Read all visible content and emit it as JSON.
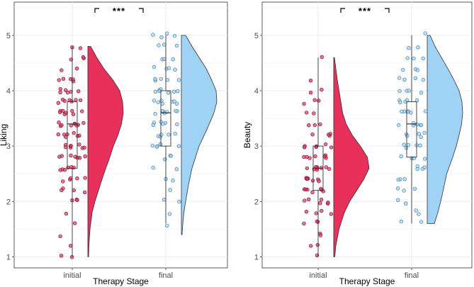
{
  "chart_data": [
    {
      "type": "violin",
      "title": "",
      "xlabel": "Therapy Stage",
      "ylabel": "Liking",
      "ylim": [
        0.8,
        5.6
      ],
      "yticks": [
        1,
        2,
        3,
        4,
        5
      ],
      "categories": [
        "initial",
        "final"
      ],
      "significance": "***",
      "colors": {
        "initial": "#E8305A",
        "final": "#9FD3F5"
      },
      "series": [
        {
          "name": "initial",
          "min": 1.0,
          "q1": 2.6,
          "median": 3.4,
          "q3": 3.8,
          "max": 4.8,
          "density": [
            [
              1.0,
              0.02
            ],
            [
              1.2,
              0.03
            ],
            [
              1.5,
              0.06
            ],
            [
              1.8,
              0.12
            ],
            [
              2.0,
              0.2
            ],
            [
              2.2,
              0.3
            ],
            [
              2.5,
              0.45
            ],
            [
              2.8,
              0.62
            ],
            [
              3.0,
              0.72
            ],
            [
              3.2,
              0.85
            ],
            [
              3.4,
              0.95
            ],
            [
              3.6,
              1.0
            ],
            [
              3.8,
              0.98
            ],
            [
              4.0,
              0.9
            ],
            [
              4.2,
              0.7
            ],
            [
              4.4,
              0.45
            ],
            [
              4.6,
              0.25
            ],
            [
              4.8,
              0.08
            ]
          ],
          "points": [
            1.0,
            1.0,
            1.2,
            1.4,
            1.6,
            1.8,
            2.0,
            2.0,
            2.0,
            2.2,
            2.2,
            2.2,
            2.2,
            2.4,
            2.4,
            2.4,
            2.4,
            2.4,
            2.6,
            2.6,
            2.6,
            2.6,
            2.6,
            2.6,
            2.8,
            2.8,
            2.8,
            2.8,
            2.8,
            2.8,
            2.8,
            3.0,
            3.0,
            3.0,
            3.0,
            3.0,
            3.0,
            3.0,
            3.0,
            3.2,
            3.2,
            3.2,
            3.2,
            3.2,
            3.2,
            3.2,
            3.4,
            3.4,
            3.4,
            3.4,
            3.4,
            3.4,
            3.4,
            3.4,
            3.4,
            3.6,
            3.6,
            3.6,
            3.6,
            3.6,
            3.6,
            3.6,
            3.6,
            3.8,
            3.8,
            3.8,
            3.8,
            3.8,
            3.8,
            3.8,
            4.0,
            4.0,
            4.0,
            4.0,
            4.0,
            4.0,
            4.2,
            4.2,
            4.2,
            4.2,
            4.2,
            4.4,
            4.4,
            4.6,
            4.6,
            4.6,
            4.8,
            4.8
          ]
        },
        {
          "name": "final",
          "min": 1.6,
          "q1": 3.0,
          "median": 3.6,
          "q3": 4.0,
          "max": 5.0,
          "density": [
            [
              1.4,
              0.02
            ],
            [
              1.6,
              0.04
            ],
            [
              1.8,
              0.07
            ],
            [
              2.0,
              0.12
            ],
            [
              2.3,
              0.2
            ],
            [
              2.6,
              0.3
            ],
            [
              3.0,
              0.5
            ],
            [
              3.3,
              0.72
            ],
            [
              3.6,
              0.92
            ],
            [
              3.8,
              1.0
            ],
            [
              4.0,
              0.98
            ],
            [
              4.2,
              0.85
            ],
            [
              4.4,
              0.7
            ],
            [
              4.6,
              0.5
            ],
            [
              4.8,
              0.3
            ],
            [
              5.0,
              0.12
            ]
          ],
          "points": [
            1.6,
            1.8,
            2.0,
            2.0,
            2.2,
            2.4,
            2.4,
            2.6,
            2.6,
            2.8,
            2.8,
            2.8,
            3.0,
            3.0,
            3.0,
            3.0,
            3.0,
            3.2,
            3.2,
            3.2,
            3.2,
            3.2,
            3.4,
            3.4,
            3.4,
            3.4,
            3.4,
            3.4,
            3.6,
            3.6,
            3.6,
            3.6,
            3.6,
            3.6,
            3.6,
            3.8,
            3.8,
            3.8,
            3.8,
            3.8,
            3.8,
            3.8,
            4.0,
            4.0,
            4.0,
            4.0,
            4.0,
            4.0,
            4.0,
            4.2,
            4.2,
            4.2,
            4.2,
            4.2,
            4.4,
            4.4,
            4.4,
            4.4,
            4.6,
            4.6,
            4.6,
            4.8,
            4.8,
            4.8,
            5.0,
            5.0,
            5.0,
            5.0
          ]
        }
      ]
    },
    {
      "type": "violin",
      "title": "",
      "xlabel": "Therapy Stage",
      "ylabel": "Beauty",
      "ylim": [
        0.8,
        5.6
      ],
      "yticks": [
        1,
        2,
        3,
        4,
        5
      ],
      "categories": [
        "initial",
        "final"
      ],
      "significance": "***",
      "colors": {
        "initial": "#E8305A",
        "final": "#9FD3F5"
      },
      "series": [
        {
          "name": "initial",
          "min": 1.0,
          "q1": 2.2,
          "median": 2.6,
          "q3": 3.0,
          "max": 4.6,
          "density": [
            [
              1.0,
              0.03
            ],
            [
              1.2,
              0.06
            ],
            [
              1.5,
              0.15
            ],
            [
              1.8,
              0.3
            ],
            [
              2.0,
              0.45
            ],
            [
              2.2,
              0.65
            ],
            [
              2.4,
              0.85
            ],
            [
              2.6,
              1.0
            ],
            [
              2.8,
              0.95
            ],
            [
              3.0,
              0.75
            ],
            [
              3.2,
              0.52
            ],
            [
              3.4,
              0.35
            ],
            [
              3.6,
              0.25
            ],
            [
              3.8,
              0.2
            ],
            [
              4.0,
              0.15
            ],
            [
              4.2,
              0.1
            ],
            [
              4.4,
              0.06
            ],
            [
              4.6,
              0.02
            ]
          ],
          "points": [
            1.0,
            1.2,
            1.2,
            1.4,
            1.4,
            1.6,
            1.6,
            1.6,
            1.8,
            1.8,
            1.8,
            1.8,
            2.0,
            2.0,
            2.0,
            2.0,
            2.0,
            2.0,
            2.2,
            2.2,
            2.2,
            2.2,
            2.2,
            2.2,
            2.2,
            2.4,
            2.4,
            2.4,
            2.4,
            2.4,
            2.4,
            2.4,
            2.4,
            2.6,
            2.6,
            2.6,
            2.6,
            2.6,
            2.6,
            2.6,
            2.6,
            2.6,
            2.8,
            2.8,
            2.8,
            2.8,
            2.8,
            2.8,
            2.8,
            3.0,
            3.0,
            3.0,
            3.0,
            3.0,
            3.0,
            3.2,
            3.2,
            3.2,
            3.2,
            3.4,
            3.4,
            3.4,
            3.6,
            3.6,
            3.8,
            3.8,
            3.8,
            4.0,
            4.0,
            4.2,
            4.6
          ]
        },
        {
          "name": "final",
          "min": 1.6,
          "q1": 2.8,
          "median": 3.4,
          "q3": 3.8,
          "max": 5.0,
          "density": [
            [
              1.6,
              0.2
            ],
            [
              1.8,
              0.3
            ],
            [
              2.0,
              0.38
            ],
            [
              2.2,
              0.45
            ],
            [
              2.5,
              0.55
            ],
            [
              2.8,
              0.72
            ],
            [
              3.0,
              0.82
            ],
            [
              3.2,
              0.9
            ],
            [
              3.4,
              0.97
            ],
            [
              3.6,
              1.0
            ],
            [
              3.8,
              0.98
            ],
            [
              4.0,
              0.9
            ],
            [
              4.2,
              0.75
            ],
            [
              4.4,
              0.58
            ],
            [
              4.6,
              0.4
            ],
            [
              4.8,
              0.22
            ],
            [
              5.0,
              0.08
            ]
          ],
          "points": [
            1.6,
            1.6,
            1.8,
            1.8,
            2.0,
            2.0,
            2.2,
            2.2,
            2.2,
            2.4,
            2.4,
            2.4,
            2.6,
            2.6,
            2.6,
            2.6,
            2.8,
            2.8,
            2.8,
            2.8,
            3.0,
            3.0,
            3.0,
            3.0,
            3.0,
            3.2,
            3.2,
            3.2,
            3.2,
            3.2,
            3.4,
            3.4,
            3.4,
            3.4,
            3.4,
            3.4,
            3.6,
            3.6,
            3.6,
            3.6,
            3.6,
            3.6,
            3.8,
            3.8,
            3.8,
            3.8,
            3.8,
            4.0,
            4.0,
            4.0,
            4.0,
            4.2,
            4.2,
            4.2,
            4.2,
            4.4,
            4.4,
            4.4,
            4.6,
            4.6,
            4.6,
            4.8,
            4.8,
            5.0
          ]
        }
      ]
    }
  ]
}
